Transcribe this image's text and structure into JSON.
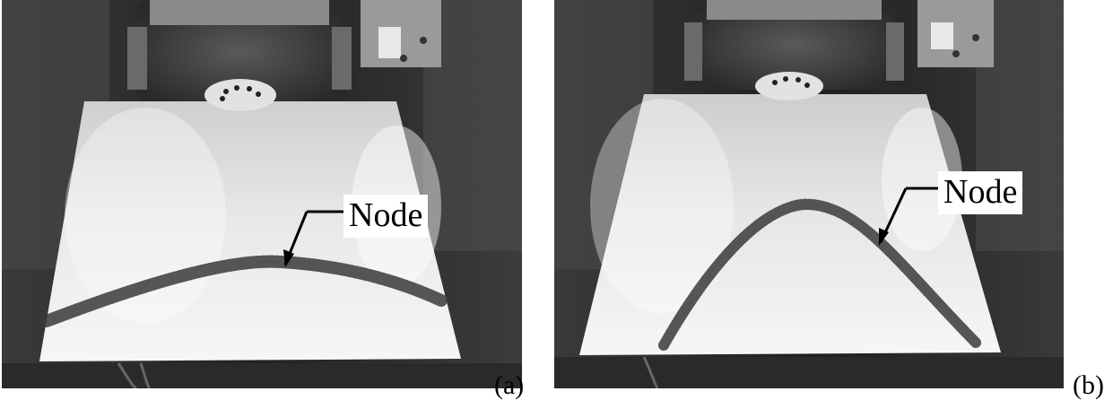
{
  "figure": {
    "panels": [
      {
        "id": "a",
        "letter": "(a)",
        "annotation": "Node"
      },
      {
        "id": "b",
        "letter": "(b)",
        "annotation": "Node"
      }
    ]
  }
}
